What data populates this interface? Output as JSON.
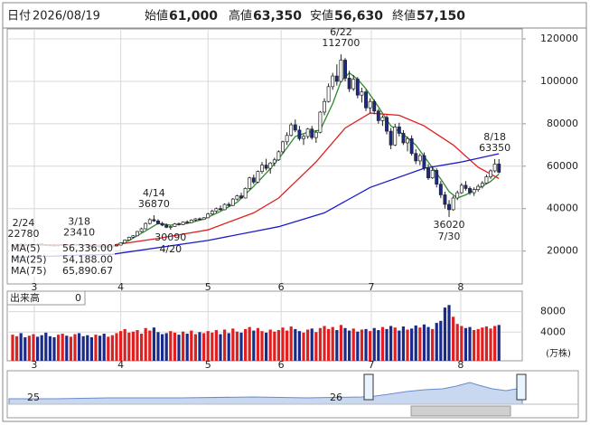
{
  "header": [
    {
      "label": "日付",
      "value": "2026/08/19",
      "color": "#222222"
    },
    {
      "label": "始値",
      "value": "61,000",
      "color": "#222222"
    },
    {
      "label": "高値",
      "value": "63,350",
      "color": "#e02020"
    },
    {
      "label": "安値",
      "value": "56,630",
      "color": "#1e8a1e"
    },
    {
      "label": "終値",
      "value": "57,150",
      "color": "#222222"
    }
  ],
  "chart_data": {
    "type": "candlestick",
    "up_color": "#ffffff",
    "down_color": "#1a2a8a",
    "outline_color": "#222222",
    "xlim": [
      -1.3,
      122.6
    ],
    "xticks": [
      {
        "value": 5.2,
        "label": "3"
      },
      {
        "value": 26,
        "label": "4"
      },
      {
        "value": 47,
        "label": "5"
      },
      {
        "value": 64.6,
        "label": "6"
      },
      {
        "value": 86.3,
        "label": "7"
      },
      {
        "value": 107.8,
        "label": "8"
      }
    ],
    "ylim": [
      4500,
      124700
    ],
    "yticks": [
      20000,
      40000,
      60000,
      80000,
      100000,
      120000
    ],
    "grid": true,
    "ohlc": [
      [
        22500,
        22780,
        22200,
        22600
      ],
      [
        23100,
        23500,
        22900,
        23300
      ],
      [
        23300,
        23600,
        23000,
        23200
      ],
      [
        23200,
        23400,
        22800,
        22900
      ],
      [
        22900,
        23300,
        22700,
        23100
      ],
      [
        23100,
        23300,
        23000,
        23200
      ],
      [
        23200,
        23350,
        23000,
        23100
      ],
      [
        23400,
        23600,
        22900,
        23000
      ],
      [
        23000,
        23200,
        22600,
        22800
      ],
      [
        22800,
        23100,
        22500,
        22700
      ],
      [
        22700,
        23000,
        22300,
        22500
      ],
      [
        22500,
        22900,
        22200,
        22800
      ],
      [
        22800,
        23200,
        22600,
        23000
      ],
      [
        23000,
        23300,
        22700,
        22900
      ],
      [
        22900,
        23200,
        22600,
        23100
      ],
      [
        23100,
        23400,
        22900,
        23200
      ],
      [
        23200,
        23410,
        22900,
        23000
      ],
      [
        23000,
        23200,
        22500,
        22600
      ],
      [
        22600,
        22900,
        22200,
        22400
      ],
      [
        22400,
        22700,
        21900,
        22100
      ],
      [
        22100,
        22500,
        21800,
        22300
      ],
      [
        22300,
        22600,
        21900,
        22000
      ],
      [
        22000,
        22400,
        21600,
        21800
      ],
      [
        21800,
        22200,
        21500,
        22000
      ],
      [
        22000,
        22600,
        21900,
        22400
      ],
      [
        22400,
        23000,
        22200,
        22800
      ],
      [
        22800,
        24000,
        22700,
        23800
      ],
      [
        23800,
        25500,
        23600,
        25200
      ],
      [
        25200,
        26800,
        25000,
        26500
      ],
      [
        26500,
        27500,
        26000,
        27200
      ],
      [
        27200,
        29500,
        27000,
        29200
      ],
      [
        29200,
        31000,
        28800,
        30500
      ],
      [
        30500,
        33500,
        30200,
        33000
      ],
      [
        33000,
        35500,
        32500,
        34800
      ],
      [
        34800,
        36870,
        33800,
        34200
      ],
      [
        34200,
        35000,
        32500,
        33000
      ],
      [
        33000,
        33800,
        31800,
        32200
      ],
      [
        32200,
        33000,
        30800,
        31200
      ],
      [
        31200,
        32000,
        30090,
        31600
      ],
      [
        31600,
        33200,
        31400,
        32800
      ],
      [
        32800,
        33500,
        32000,
        32500
      ],
      [
        32500,
        34000,
        32200,
        33700
      ],
      [
        33700,
        34500,
        33000,
        33400
      ],
      [
        33400,
        35000,
        33200,
        34600
      ],
      [
        34600,
        35500,
        34000,
        35200
      ],
      [
        35200,
        35800,
        34500,
        34900
      ],
      [
        34900,
        36000,
        34700,
        35700
      ],
      [
        35700,
        38000,
        35500,
        37500
      ],
      [
        37500,
        39500,
        37000,
        38800
      ],
      [
        38800,
        40500,
        38000,
        40000
      ],
      [
        40000,
        41500,
        39000,
        39500
      ],
      [
        39500,
        42500,
        39200,
        42000
      ],
      [
        42000,
        43000,
        40800,
        41500
      ],
      [
        41500,
        45000,
        41200,
        44500
      ],
      [
        44500,
        46500,
        43800,
        46000
      ],
      [
        46000,
        47500,
        44500,
        45000
      ],
      [
        45000,
        50000,
        44800,
        49500
      ],
      [
        49500,
        55000,
        49000,
        54500
      ],
      [
        54500,
        56000,
        51500,
        52500
      ],
      [
        52500,
        58000,
        52000,
        57500
      ],
      [
        57500,
        62000,
        56500,
        60500
      ],
      [
        60500,
        63500,
        58000,
        59000
      ],
      [
        59000,
        62000,
        56500,
        61500
      ],
      [
        61500,
        64000,
        60000,
        63000
      ],
      [
        63000,
        67500,
        62500,
        66800
      ],
      [
        66800,
        72000,
        66000,
        71500
      ],
      [
        71500,
        76000,
        70000,
        74500
      ],
      [
        74500,
        80500,
        74000,
        79500
      ],
      [
        79500,
        82000,
        76000,
        77000
      ],
      [
        77000,
        79000,
        72000,
        73000
      ],
      [
        73000,
        75000,
        70000,
        74000
      ],
      [
        74000,
        78000,
        73000,
        77500
      ],
      [
        77500,
        79000,
        72500,
        73500
      ],
      [
        73500,
        77000,
        71000,
        76000
      ],
      [
        76000,
        86000,
        75500,
        85500
      ],
      [
        85500,
        92000,
        84000,
        90500
      ],
      [
        90500,
        99000,
        90000,
        97500
      ],
      [
        97500,
        104000,
        96000,
        102500
      ],
      [
        102500,
        108000,
        98000,
        100000
      ],
      [
        100000,
        112700,
        99500,
        110000
      ],
      [
        110000,
        111000,
        100000,
        101500
      ],
      [
        101500,
        105000,
        95000,
        96500
      ],
      [
        96500,
        103000,
        95500,
        101000
      ],
      [
        101000,
        102000,
        92000,
        93500
      ],
      [
        93500,
        97000,
        90000,
        95000
      ],
      [
        95000,
        96000,
        86000,
        87500
      ],
      [
        87500,
        92000,
        85000,
        90500
      ],
      [
        90500,
        91500,
        84500,
        86000
      ],
      [
        86000,
        87000,
        80000,
        81500
      ],
      [
        81500,
        84000,
        79000,
        83000
      ],
      [
        83000,
        84000,
        75000,
        76500
      ],
      [
        76500,
        78000,
        68000,
        70000
      ],
      [
        70000,
        80000,
        69500,
        78500
      ],
      [
        78500,
        80500,
        74000,
        75500
      ],
      [
        75500,
        77000,
        70000,
        71000
      ],
      [
        71000,
        74000,
        67000,
        73000
      ],
      [
        73000,
        74500,
        65000,
        66000
      ],
      [
        66000,
        68000,
        61000,
        62500
      ],
      [
        62500,
        66000,
        60500,
        65000
      ],
      [
        65000,
        66500,
        58000,
        59000
      ],
      [
        59000,
        61000,
        53500,
        54500
      ],
      [
        54500,
        60000,
        54000,
        58000
      ],
      [
        58000,
        59000,
        50000,
        51500
      ],
      [
        51500,
        53000,
        45000,
        46500
      ],
      [
        46500,
        48000,
        40000,
        42000
      ],
      [
        42000,
        44000,
        36020,
        39500
      ],
      [
        39500,
        46000,
        39000,
        45000
      ],
      [
        45000,
        48500,
        44000,
        47500
      ],
      [
        47500,
        52000,
        47000,
        51000
      ],
      [
        51000,
        53000,
        48500,
        49500
      ],
      [
        49500,
        50500,
        46500,
        47500
      ],
      [
        47500,
        50000,
        46000,
        49000
      ],
      [
        49000,
        51500,
        48000,
        50500
      ],
      [
        50500,
        53000,
        49500,
        52000
      ],
      [
        52000,
        56000,
        51500,
        55000
      ],
      [
        55000,
        58500,
        54000,
        57800
      ],
      [
        57800,
        63350,
        57000,
        61000
      ],
      [
        61000,
        63350,
        56630,
        57150
      ]
    ],
    "ma": [
      {
        "name": "MA(5)",
        "color": "#2e8b2e",
        "last_label": "56,336.00",
        "x": [
          4,
          9,
          14,
          19,
          24,
          28,
          32,
          35,
          38,
          42,
          46,
          50,
          54,
          58,
          62,
          65,
          68,
          71,
          74,
          77,
          79,
          81,
          83,
          85,
          88,
          91,
          94,
          97,
          100,
          103,
          105,
          107,
          109,
          112,
          115,
          117
        ],
        "values": [
          23100,
          22900,
          22900,
          22600,
          22100,
          25000,
          29500,
          33000,
          32200,
          33000,
          35000,
          38700,
          43000,
          50500,
          58800,
          66000,
          74000,
          76000,
          77000,
          89500,
          100000,
          104000,
          101000,
          96500,
          88000,
          79000,
          75000,
          70000,
          62000,
          54000,
          48000,
          45000,
          46500,
          49500,
          52800,
          56336
        ]
      },
      {
        "name": "MA(25)",
        "color": "#e02020",
        "last_label": "54,188.00",
        "x": [
          0,
          12,
          24,
          35,
          47,
          58,
          64,
          73,
          80,
          86,
          93,
          99,
          106,
          112,
          117
        ],
        "values": [
          22500,
          23000,
          22800,
          26000,
          30000,
          38000,
          45000,
          62000,
          78000,
          85000,
          84000,
          79000,
          70000,
          59500,
          54188
        ]
      },
      {
        "name": "MA(75)",
        "color": "#1a1acc",
        "last_label": "65,890.67",
        "x": [
          0,
          24,
          47,
          64,
          75,
          86,
          99,
          108,
          117
        ],
        "values": [
          17000,
          18500,
          25000,
          31500,
          38000,
          50000,
          59000,
          62000,
          65890.67
        ]
      }
    ],
    "annotations": [
      {
        "date": "2/24",
        "value": 22780,
        "x": 0,
        "kind": "high"
      },
      {
        "date": "3/18",
        "value": 23410,
        "x": 16,
        "kind": "high"
      },
      {
        "date": "4/14",
        "value": 36870,
        "x": 34,
        "kind": "high"
      },
      {
        "date": "4/20",
        "value": 30090,
        "x": 38,
        "kind": "low"
      },
      {
        "date": "6/22",
        "value": 112700,
        "x": 79,
        "kind": "high"
      },
      {
        "date": "7/30",
        "value": 36020,
        "x": 105,
        "kind": "low"
      },
      {
        "date": "8/18",
        "value": 63350,
        "x": 116,
        "kind": "high"
      }
    ],
    "volume": {
      "title": "出来高",
      "current": 0,
      "unit": "(万株)",
      "up_color": "#e02020",
      "down_color": "#1a2a8a",
      "ylim": [
        -1600,
        12000
      ],
      "yticks": [
        4000,
        8000
      ],
      "values": [
        3500,
        3200,
        3800,
        3000,
        3300,
        3600,
        3100,
        3400,
        3900,
        3200,
        3000,
        3500,
        3700,
        3300,
        3100,
        3600,
        3800,
        3200,
        3400,
        3000,
        3500,
        3300,
        3700,
        3100,
        3400,
        3800,
        4200,
        4600,
        3900,
        4100,
        4400,
        3700,
        4800,
        4300,
        4900,
        4000,
        3600,
        3800,
        4200,
        3900,
        3500,
        4100,
        3700,
        4300,
        3600,
        4000,
        3800,
        4200,
        3900,
        4400,
        3600,
        4500,
        3800,
        4700,
        4100,
        3900,
        4600,
        5000,
        4300,
        4800,
        4200,
        3900,
        4500,
        4100,
        4400,
        4900,
        4300,
        5100,
        4600,
        4200,
        3900,
        4500,
        4700,
        4000,
        4800,
        5200,
        4600,
        5000,
        4400,
        5400,
        4800,
        4300,
        4700,
        4100,
        4500,
        4600,
        4200,
        4800,
        4400,
        5000,
        4600,
        5200,
        4900,
        4300,
        5100,
        4500,
        4700,
        5300,
        4900,
        5500,
        5000,
        4600,
        5800,
        6200,
        8800,
        9300,
        7000,
        5600,
        5200,
        4800,
        5000,
        4400,
        4600,
        4900,
        5100,
        4700,
        5200,
        5400
      ]
    }
  },
  "navigator": {
    "labels": [
      "25",
      "26"
    ]
  }
}
